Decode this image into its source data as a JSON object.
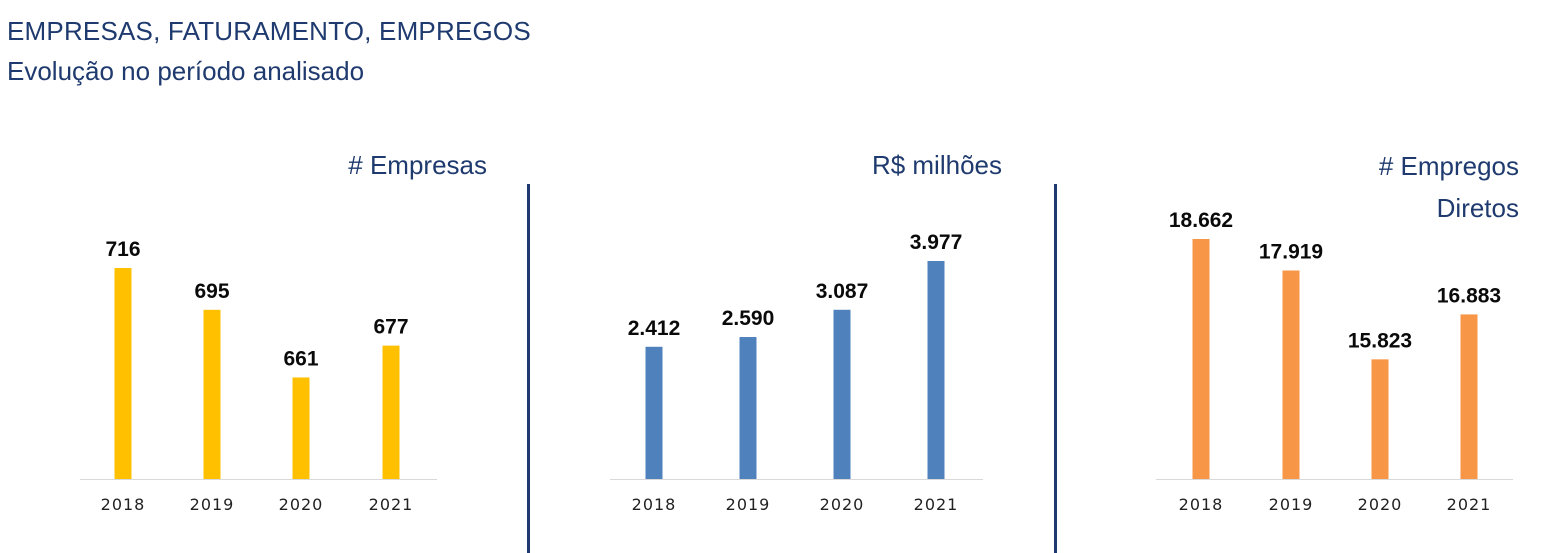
{
  "header": {
    "title": "EMPRESAS, FATURAMENTO, EMPREGOS",
    "subtitle": "Evolução no período analisado"
  },
  "chart_data": [
    {
      "type": "bar",
      "title": "# Empresas",
      "categories": [
        "2018",
        "2019",
        "2020",
        "2021"
      ],
      "values": [
        716,
        695,
        661,
        677
      ],
      "value_labels": [
        "716",
        "695",
        "661",
        "677"
      ],
      "color": "#FFC000",
      "ylim": [
        610,
        730
      ],
      "grid": false,
      "legend": "none"
    },
    {
      "type": "bar",
      "title": "R$ milhões",
      "categories": [
        "2018",
        "2019",
        "2020",
        "2021"
      ],
      "values": [
        2412,
        2590,
        3087,
        3977
      ],
      "value_labels": [
        "2.412",
        "2.590",
        "3.087",
        "3.977"
      ],
      "color": "#4F81BD",
      "ylim": [
        0,
        4500
      ],
      "grid": false,
      "legend": "none"
    },
    {
      "type": "bar",
      "title_lines": [
        "# Empregos",
        "Diretos"
      ],
      "categories": [
        "2018",
        "2019",
        "2020",
        "2021"
      ],
      "values": [
        18662,
        17919,
        15823,
        16883
      ],
      "value_labels": [
        "18.662",
        "17.919",
        "15.823",
        "16.883"
      ],
      "color": "#F79646",
      "ylim": [
        13000,
        19000
      ],
      "grid": false,
      "legend": "none"
    }
  ]
}
